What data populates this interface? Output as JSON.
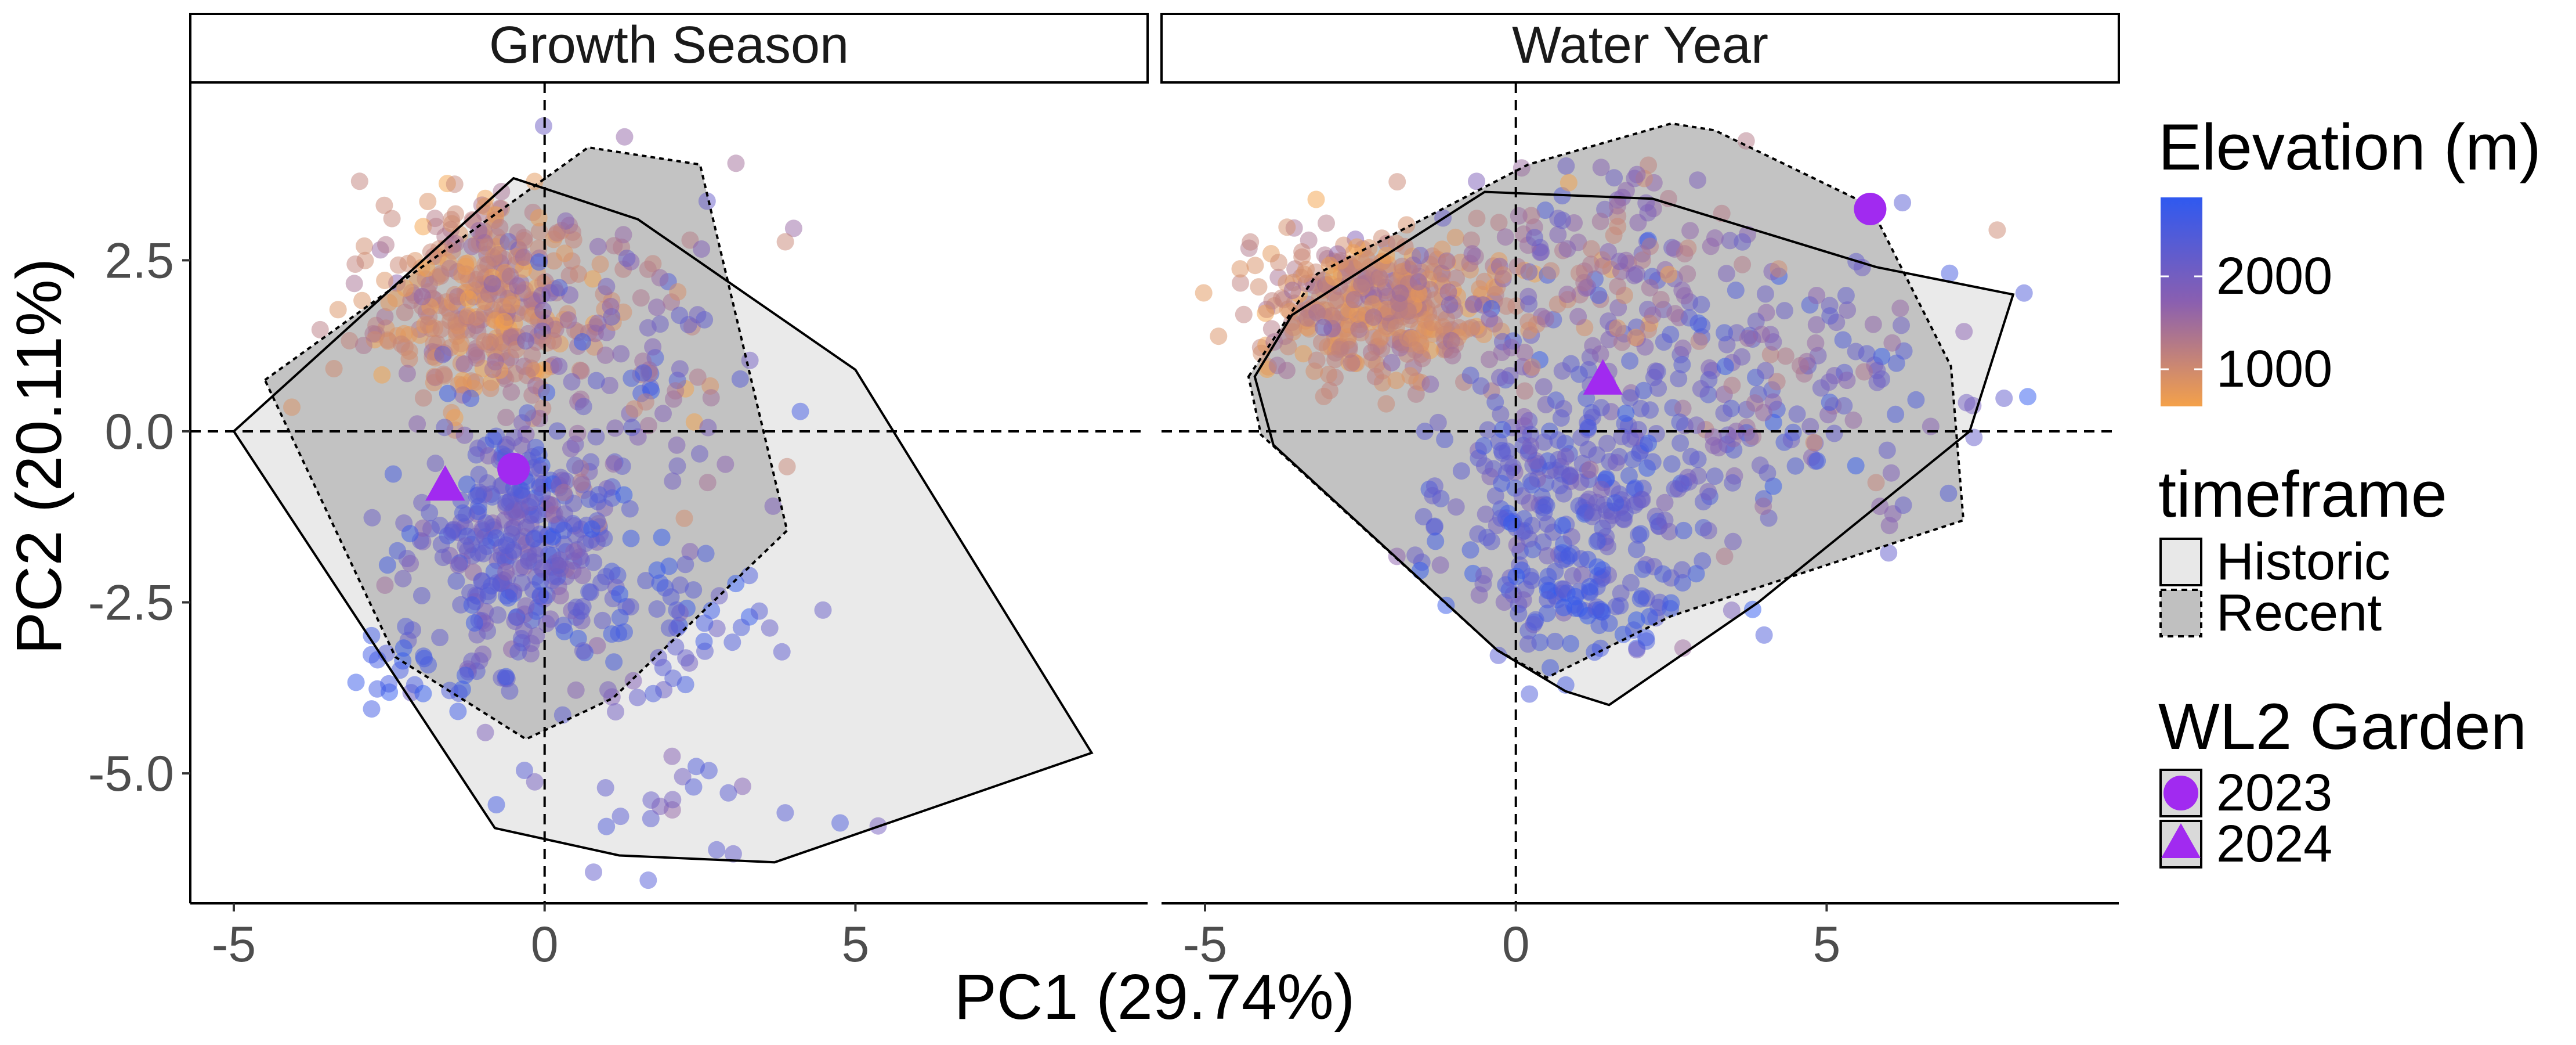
{
  "chart_data": {
    "type": "scatter",
    "xlabel": "PC1 (29.74%)",
    "ylabel": "PC2 (20.11%)",
    "xlim": [
      -5.7,
      9.7
    ],
    "ylim": [
      -6.9,
      5.1
    ],
    "x_ticks": [
      -5,
      0,
      5
    ],
    "x_tick_labels": [
      "-5",
      "0",
      "5"
    ],
    "y_ticks": [
      -5.0,
      -2.5,
      0.0,
      2.5
    ],
    "y_tick_labels": [
      "-5.0",
      "-2.5",
      "0.0",
      "2.5"
    ],
    "reference_lines": {
      "x": 0,
      "y": 0,
      "style": "dashed"
    },
    "grid": false,
    "legend_position": "right",
    "panels": [
      {
        "strip_label": "Growth Season",
        "hulls": {
          "Historic": [
            [
              -5.0,
              0.0
            ],
            [
              -0.5,
              3.7
            ],
            [
              1.5,
              3.1
            ],
            [
              5.0,
              0.9
            ],
            [
              8.8,
              -4.7
            ],
            [
              3.7,
              -6.3
            ],
            [
              1.2,
              -6.2
            ],
            [
              -0.8,
              -5.8
            ]
          ],
          "Recent": [
            [
              -4.5,
              0.75
            ],
            [
              0.7,
              4.15
            ],
            [
              2.5,
              3.9
            ],
            [
              3.9,
              -1.45
            ],
            [
              1.1,
              -3.9
            ],
            [
              -0.3,
              -4.5
            ],
            [
              -2.4,
              -3.3
            ]
          ]
        },
        "wl2_garden": [
          {
            "year": "2023",
            "x": -0.5,
            "y": -0.55
          },
          {
            "year": "2024",
            "x": -1.6,
            "y": -0.8
          }
        ]
      },
      {
        "strip_label": "Water Year",
        "hulls": {
          "Historic": [
            [
              -4.2,
              0.8
            ],
            [
              -3.6,
              1.7
            ],
            [
              -0.5,
              3.5
            ],
            [
              2.2,
              3.4
            ],
            [
              5.8,
              2.4
            ],
            [
              8.0,
              2.0
            ],
            [
              7.3,
              0.0
            ],
            [
              3.9,
              -2.5
            ],
            [
              1.5,
              -4.0
            ],
            [
              0.8,
              -3.8
            ],
            [
              -0.3,
              -3.2
            ],
            [
              -3.9,
              -0.2
            ]
          ],
          "Recent": [
            [
              -4.3,
              0.8
            ],
            [
              -3.2,
              2.3
            ],
            [
              0.2,
              3.9
            ],
            [
              2.5,
              4.5
            ],
            [
              3.2,
              4.4
            ],
            [
              5.7,
              3.3
            ],
            [
              7.0,
              0.95
            ],
            [
              7.2,
              -1.3
            ],
            [
              2.5,
              -2.7
            ],
            [
              0.5,
              -3.6
            ],
            [
              -0.3,
              -3.2
            ],
            [
              -4.1,
              -0.05
            ]
          ]
        },
        "wl2_garden": [
          {
            "year": "2023",
            "x": 5.7,
            "y": 3.25
          },
          {
            "year": "2024",
            "x": 1.4,
            "y": 0.75
          }
        ]
      }
    ],
    "colors": {
      "elevation_low": "#f4a14a",
      "elevation_mid": "#8a5fb0",
      "elevation_high": "#2f59f0",
      "historic_fill": "#e8e8e8",
      "recent_fill": "#c0c0c0",
      "wl2_garden": "#a12af0"
    }
  },
  "legend": {
    "elevation": {
      "title": "Elevation (m)",
      "labels": [
        "2000",
        "1000"
      ],
      "values": [
        2000,
        1000
      ],
      "range": [
        600,
        2850
      ]
    },
    "timeframe": {
      "title": "timeframe",
      "items": [
        "Historic",
        "Recent"
      ]
    },
    "garden": {
      "title": "WL2 Garden",
      "items": [
        "2023",
        "2024"
      ]
    }
  }
}
